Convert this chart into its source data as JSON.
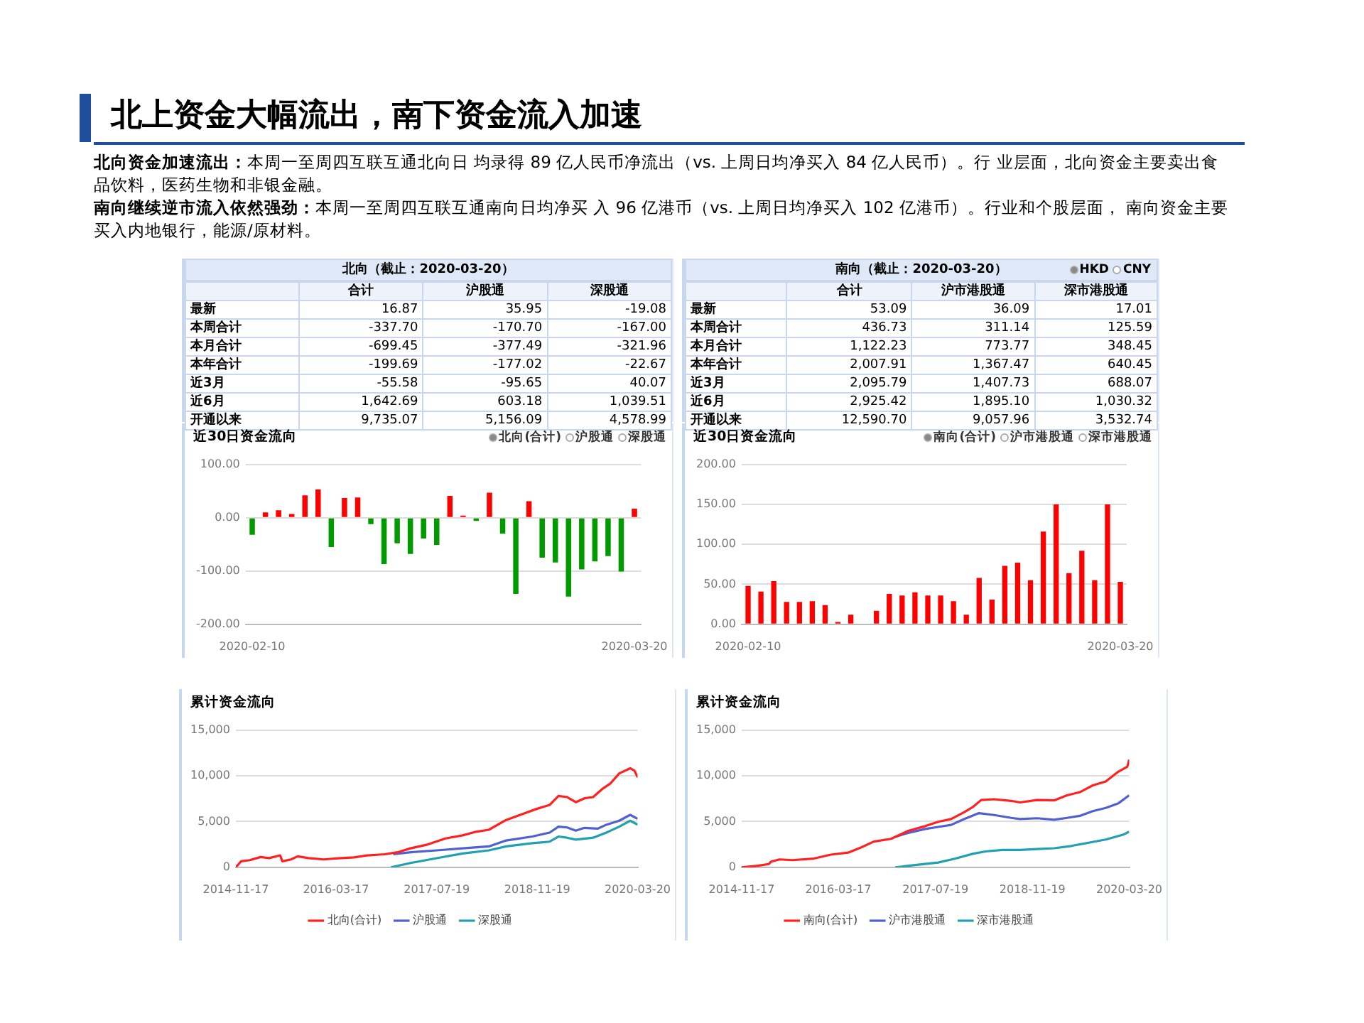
{
  "chart_data": [
    {
      "type": "other",
      "title": "北上资金大幅流出，南下资金流入加速",
      "annotations": [
        "北向资金加速流出：",
        "本周一至周四互联互通北向日 均录得 89 亿人民币净流出（vs. 上周日均净买入 84 亿人民币）。行 业层面，北向资金主要卖出食品饮料，医药生物和非银金融。",
        "南向继续逆市流入依然强劲：",
        "本周一至周四互联互通南向日均净买 入 96 亿港币（vs. 上周日均净买入 102 亿港币）。行业和个股层面， 南向资金主要买入内地银行，能源/原材料。"
      ]
    },
    {
      "type": "other",
      "title": "北向（截止：2020-03-20）",
      "categories": [
        "合计",
        "沪股通",
        "深股通"
      ],
      "y_categories": [
        "最新",
        "本周合计",
        "本月合计",
        "本年合计",
        "近3月",
        "近6月",
        "开通以来"
      ],
      "cell_labels": [
        [
          "16.87",
          "35.95",
          "-19.08"
        ],
        [
          "-337.70",
          "-170.70",
          "-167.00"
        ],
        [
          "-699.45",
          "-377.49",
          "-321.96"
        ],
        [
          "-199.69",
          "-177.02",
          "-22.67"
        ],
        [
          "-55.58",
          "-95.65",
          "40.07"
        ],
        [
          "1,642.69",
          "603.18",
          "1,039.51"
        ],
        [
          "9,735.07",
          "5,156.09",
          "4,578.99"
        ]
      ]
    },
    {
      "type": "other",
      "title": "南向（截止：2020-03-20）",
      "annotations": [
        "HKD",
        "CNY"
      ],
      "categories": [
        "合计",
        "沪市港股通",
        "深市港股通"
      ],
      "y_categories": [
        "最新",
        "本周合计",
        "本月合计",
        "本年合计",
        "近3月",
        "近6月",
        "开通以来"
      ],
      "cell_labels": [
        [
          "53.09",
          "36.09",
          "17.01"
        ],
        [
          "436.73",
          "311.14",
          "125.59"
        ],
        [
          "1,122.23",
          "773.77",
          "348.45"
        ],
        [
          "2,007.91",
          "1,367.47",
          "640.45"
        ],
        [
          "2,095.79",
          "1,407.73",
          "688.07"
        ],
        [
          "2,925.42",
          "1,895.10",
          "1,030.32"
        ],
        [
          "12,590.70",
          "9,057.96",
          "3,532.74"
        ]
      ]
    },
    {
      "type": "bar",
      "title": "近30日资金流向",
      "annotations": [
        "北向(合计)",
        "沪股通",
        "深股通"
      ],
      "categories": [
        "2020-02-10",
        null,
        null,
        null,
        null,
        null,
        null,
        null,
        null,
        null,
        null,
        null,
        null,
        null,
        null,
        null,
        null,
        null,
        null,
        null,
        null,
        null,
        null,
        null,
        null,
        null,
        null,
        null,
        null,
        "2020-03-20"
      ],
      "values": [
        -32,
        10,
        14,
        7,
        42,
        53,
        -55,
        37,
        38,
        -12,
        -87,
        -48,
        -68,
        -39,
        -51,
        41,
        4,
        -6,
        47,
        -30,
        -143,
        31,
        -75,
        -84,
        -148,
        -97,
        -82,
        -72,
        -101,
        17
      ],
      "colors": [
        "#009900",
        "#ff0000",
        "#ff0000",
        "#ff0000",
        "#ff0000",
        "#ff0000",
        "#009900",
        "#ff0000",
        "#ff0000",
        "#009900",
        "#009900",
        "#009900",
        "#009900",
        "#009900",
        "#009900",
        "#ff0000",
        "#ff0000",
        "#009900",
        "#ff0000",
        "#009900",
        "#009900",
        "#ff0000",
        "#009900",
        "#009900",
        "#009900",
        "#009900",
        "#009900",
        "#009900",
        "#009900",
        "#ff0000"
      ],
      "ylim": [
        -200,
        100
      ],
      "yticks": [
        {
          "value": -200,
          "label": "-200.00"
        },
        {
          "value": -100,
          "label": "-100.00"
        },
        {
          "value": 0,
          "label": "0.00"
        },
        {
          "value": 100,
          "label": "100.00"
        }
      ],
      "grid": "y"
    },
    {
      "type": "bar",
      "title": "近30日资金流向",
      "annotations": [
        "南向(合计)",
        "沪市港股通",
        "深市港股通"
      ],
      "categories": [
        "2020-02-10",
        null,
        null,
        null,
        null,
        null,
        null,
        null,
        null,
        null,
        null,
        null,
        null,
        null,
        null,
        null,
        null,
        null,
        null,
        null,
        null,
        null,
        null,
        null,
        null,
        null,
        null,
        null,
        null,
        "2020-03-20"
      ],
      "values": [
        48,
        41,
        54,
        28,
        28,
        29,
        24,
        3,
        12,
        null,
        17,
        38,
        36,
        40,
        36,
        36,
        29,
        12,
        58,
        31,
        73,
        77,
        55,
        116,
        150,
        64,
        92,
        55,
        150,
        53
      ],
      "color": "#ff0000",
      "ylim": [
        0,
        200
      ],
      "yticks": [
        {
          "value": 0,
          "label": "0.00"
        },
        {
          "value": 50,
          "label": "50.00"
        },
        {
          "value": 100,
          "label": "100.00"
        },
        {
          "value": 150,
          "label": "150.00"
        },
        {
          "value": 200,
          "label": "200.00"
        }
      ],
      "grid": "y"
    },
    {
      "type": "line",
      "title": "累计资金流向",
      "xlim": [
        "2014-11-17",
        "2020-03-20"
      ],
      "xticks": [
        "2014-11-17",
        "2016-03-17",
        "2017-07-19",
        "2018-11-19",
        "2020-03-20"
      ],
      "ylim": [
        0,
        15000
      ],
      "yticks": [
        0,
        {
          "value": 5000,
          "label": "5,000"
        },
        {
          "value": 10000,
          "label": "10,000"
        },
        {
          "value": 15000,
          "label": "15,000"
        }
      ],
      "grid": "y",
      "legend": "bottom",
      "marker": "none",
      "series": [
        {
          "name": "北向(合计)",
          "color": "#ff2020",
          "x": [
            "2014-11-17",
            "2014-12-12",
            "2015-01-24",
            "2015-03-17",
            "2015-04-28",
            "2015-06-20",
            "2015-07-01",
            "2015-08-12",
            "2015-09-13",
            "2015-11-04",
            "2016-01-17",
            "2016-04-11",
            "2016-06-13",
            "2016-08-15",
            "2016-11-08",
            "2017-01-10",
            "2017-03-14",
            "2017-06-07",
            "2017-08-30",
            "2017-11-22",
            "2018-01-25",
            "2018-03-29",
            "2018-06-21",
            "2018-09-14",
            "2018-11-16",
            "2019-01-18",
            "2019-03-02",
            "2019-04-13",
            "2019-05-25",
            "2019-07-06",
            "2019-08-17",
            "2019-09-29",
            "2019-11-10",
            "2019-12-22",
            "2020-02-13",
            "2020-03-05",
            "2020-03-20"
          ],
          "values": [
            0,
            650,
            780,
            1120,
            1000,
            1300,
            650,
            860,
            1200,
            1000,
            860,
            1000,
            1080,
            1300,
            1420,
            1640,
            2070,
            2500,
            3150,
            3490,
            3880,
            4100,
            5170,
            5860,
            6380,
            6810,
            7800,
            7670,
            7110,
            7540,
            7670,
            8530,
            9180,
            10260,
            10820,
            10560,
            9830
          ]
        },
        {
          "name": "沪股通",
          "color": "#5060d0",
          "x": [
            "2016-12-20",
            "2017-03-14",
            "2017-07-19",
            "2017-11-22",
            "2018-03-29",
            "2018-06-21",
            "2018-10-26",
            "2019-01-18",
            "2019-03-02",
            "2019-04-13",
            "2019-05-25",
            "2019-07-06",
            "2019-09-08",
            "2019-10-20",
            "2019-12-22",
            "2020-02-13",
            "2020-03-20"
          ],
          "values": [
            1420,
            1640,
            1850,
            2070,
            2280,
            2930,
            3360,
            3790,
            4440,
            4350,
            4010,
            4310,
            4220,
            4650,
            5090,
            5730,
            5300
          ]
        },
        {
          "name": "深股通",
          "color": "#20a0b0",
          "x": [
            "2016-12-09",
            "2017-03-14",
            "2017-07-19",
            "2017-11-22",
            "2018-03-29",
            "2018-06-21",
            "2018-10-26",
            "2019-01-18",
            "2019-03-02",
            "2019-04-13",
            "2019-05-25",
            "2019-08-17",
            "2019-10-20",
            "2019-12-22",
            "2020-02-13",
            "2020-03-20"
          ],
          "values": [
            0,
            470,
            990,
            1510,
            1850,
            2280,
            2630,
            2800,
            3360,
            3230,
            3020,
            3230,
            3790,
            4440,
            5090,
            4650
          ]
        }
      ]
    },
    {
      "type": "line",
      "title": "累计资金流向",
      "xlim": [
        "2014-11-17",
        "2020-03-20"
      ],
      "xticks": [
        "2014-11-17",
        "2016-03-17",
        "2017-07-19",
        "2018-11-19",
        "2020-03-20"
      ],
      "ylim": [
        0,
        15000
      ],
      "yticks": [
        0,
        {
          "value": 5000,
          "label": "5,000"
        },
        {
          "value": 10000,
          "label": "10,000"
        },
        {
          "value": 15000,
          "label": "15,000"
        }
      ],
      "grid": "y",
      "legend": "bottom",
      "marker": "none",
      "series": [
        {
          "name": "南向(合计)",
          "color": "#ff2020",
          "x": [
            "2014-11-17",
            "2015-02-07",
            "2015-04-02",
            "2015-04-13",
            "2015-05-26",
            "2015-07-30",
            "2015-11-15",
            "2016-02-09",
            "2016-05-06",
            "2016-07-09",
            "2016-09-12",
            "2016-12-08",
            "2017-03-04",
            "2017-05-29",
            "2017-08-02",
            "2017-10-06",
            "2017-12-10",
            "2018-01-22",
            "2018-03-06",
            "2018-05-10",
            "2018-08-04",
            "2018-09-17",
            "2018-12-12",
            "2019-03-08",
            "2019-05-12",
            "2019-07-16",
            "2019-09-19",
            "2019-11-23",
            "2020-01-26",
            "2020-03-10",
            "2020-03-20"
          ],
          "values": [
            0,
            170,
            350,
            600,
            860,
            780,
            950,
            1380,
            1600,
            2160,
            2810,
            3110,
            3980,
            4500,
            4970,
            5270,
            6010,
            6570,
            7350,
            7440,
            7260,
            7090,
            7350,
            7310,
            7870,
            8210,
            8950,
            9380,
            10460,
            10980,
            11760
          ]
        },
        {
          "name": "沪市港股通",
          "color": "#5060d0",
          "x": [
            "2016-12-29",
            "2017-03-04",
            "2017-05-29",
            "2017-08-02",
            "2017-10-06",
            "2017-12-10",
            "2018-02-23",
            "2018-05-10",
            "2018-08-04",
            "2018-09-17",
            "2018-12-12",
            "2019-03-08",
            "2019-05-12",
            "2019-07-16",
            "2019-09-19",
            "2019-11-23",
            "2020-01-26",
            "2020-03-20"
          ],
          "values": [
            3330,
            3760,
            4190,
            4410,
            4630,
            5270,
            5920,
            5710,
            5400,
            5270,
            5360,
            5190,
            5400,
            5620,
            6140,
            6490,
            7000,
            7870
          ]
        },
        {
          "name": "深市港股通",
          "color": "#20a0b0",
          "x": [
            "2016-12-29",
            "2017-04-16",
            "2017-08-02",
            "2017-10-28",
            "2018-01-22",
            "2018-03-28",
            "2018-06-22",
            "2018-09-17",
            "2018-12-12",
            "2019-03-08",
            "2019-06-03",
            "2019-08-28",
            "2019-11-23",
            "2020-02-17",
            "2020-03-20"
          ],
          "values": [
            0,
            260,
            520,
            950,
            1470,
            1730,
            1900,
            1900,
            1990,
            2080,
            2330,
            2680,
            3030,
            3550,
            3890
          ]
        }
      ]
    }
  ]
}
